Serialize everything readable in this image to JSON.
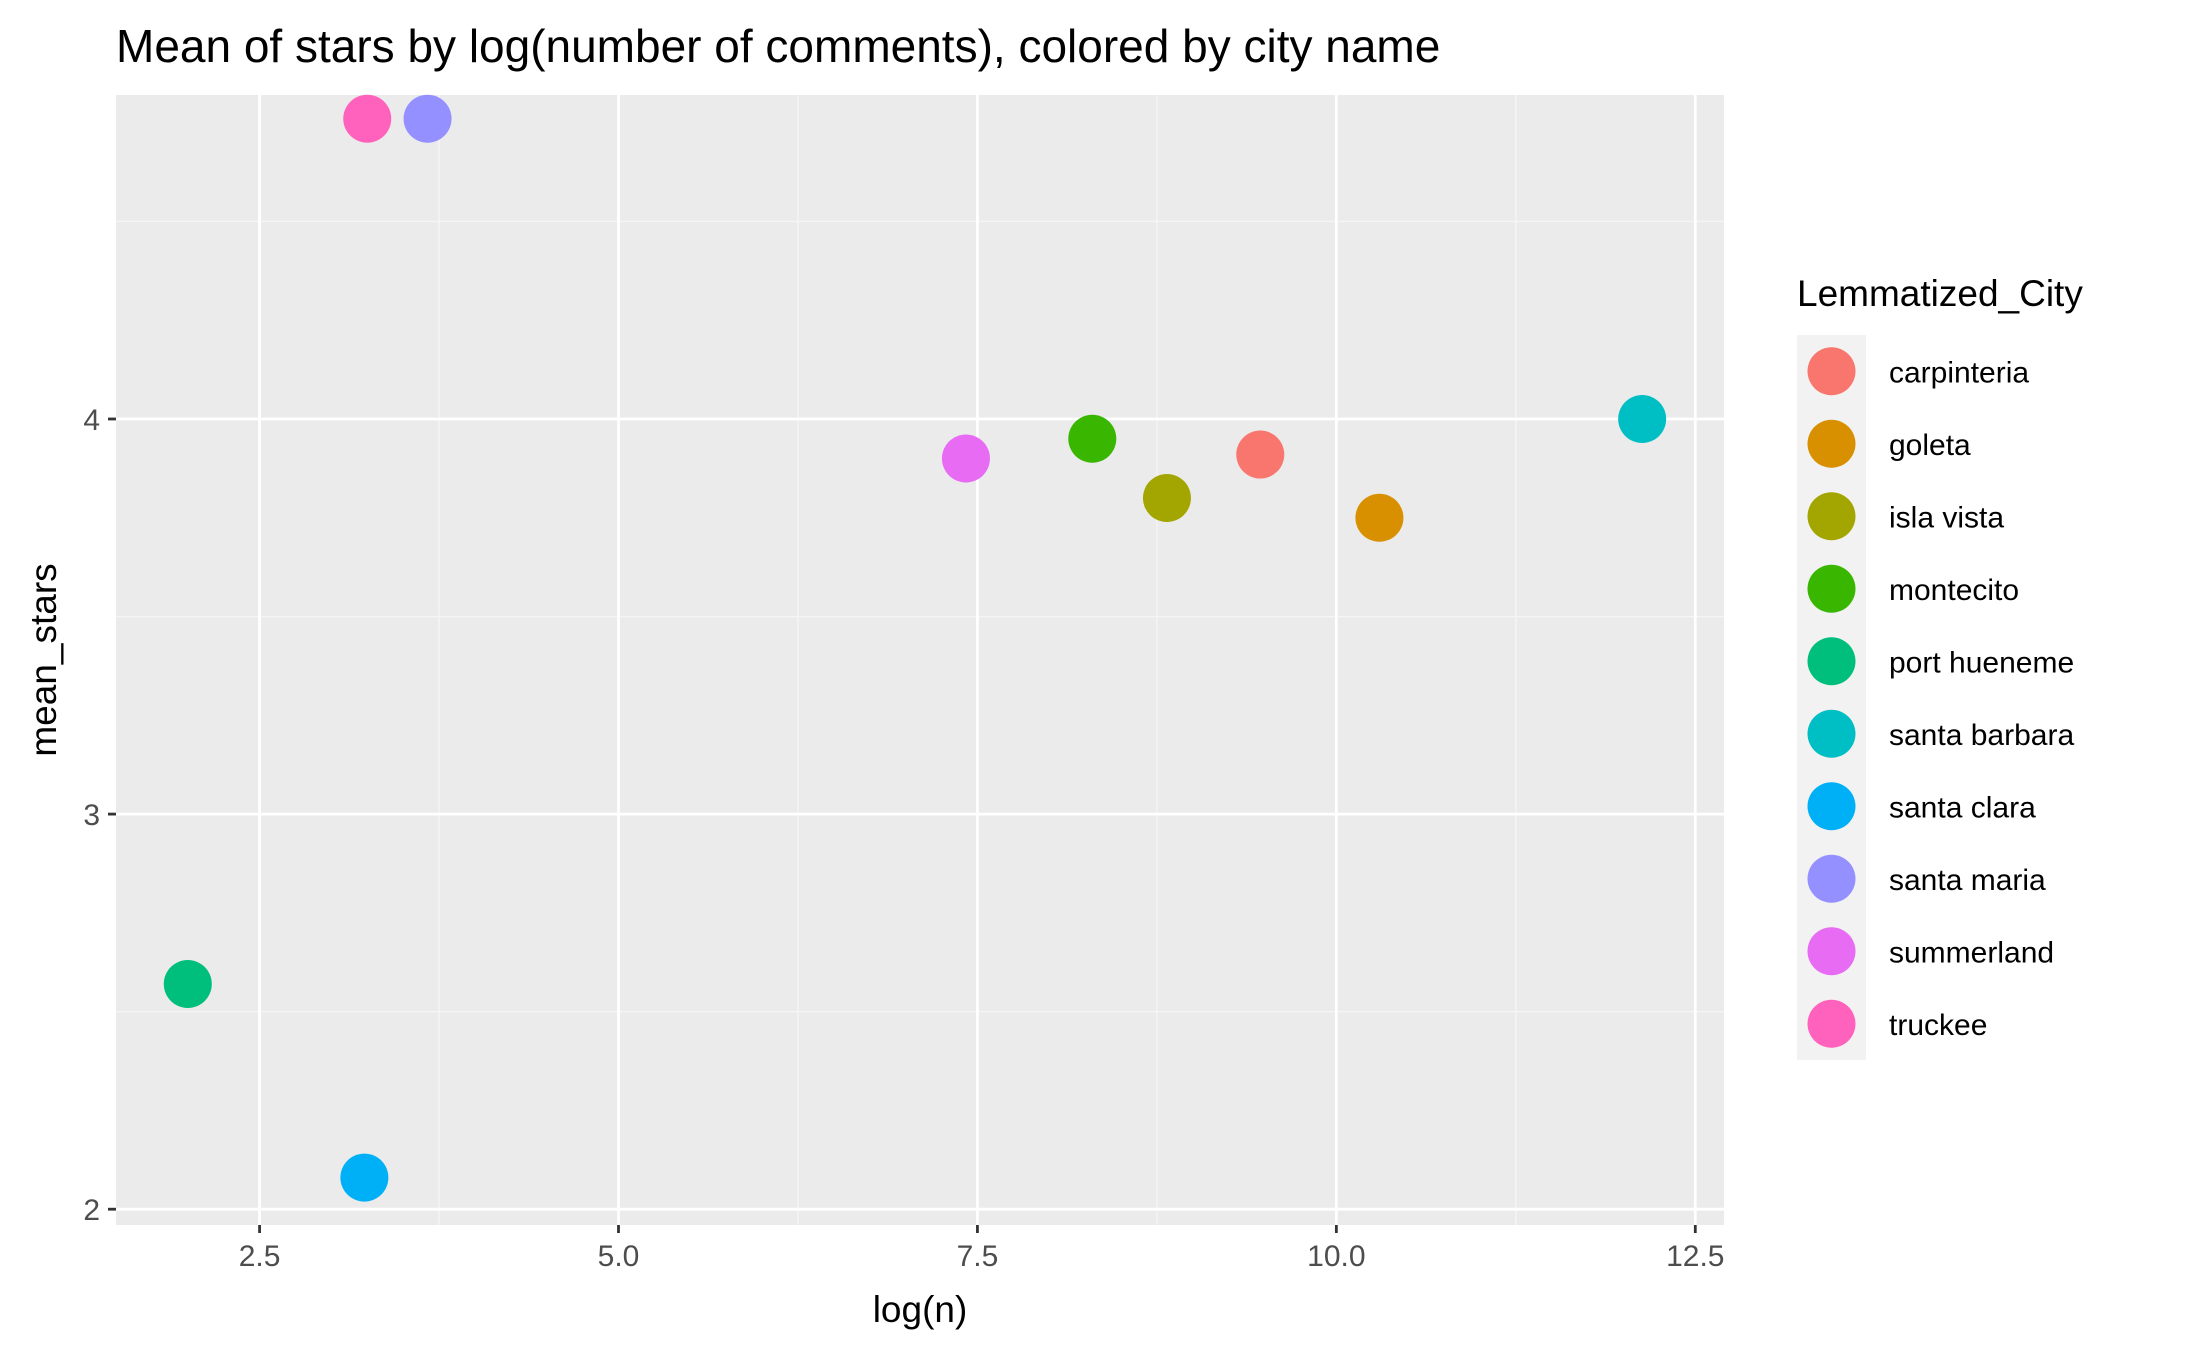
{
  "colors": {
    "panel_background": "#EBEBEB",
    "grid_major": "#FFFFFF",
    "grid_minor": "#F5F5F5",
    "legend_key_background": "#F2F2F2"
  },
  "chart_data": {
    "type": "scatter",
    "title": "Mean of stars by log(number of comments), colored by city name",
    "xlabel": "log(n)",
    "ylabel": "mean_stars",
    "xlim": [
      1.5,
      12.7
    ],
    "ylim": [
      1.96,
      4.82
    ],
    "x_ticks": [
      2.5,
      5.0,
      7.5,
      10.0,
      12.5
    ],
    "x_tick_labels": [
      "2.5",
      "5.0",
      "7.5",
      "10.0",
      "12.5"
    ],
    "y_ticks": [
      2,
      3,
      4
    ],
    "y_tick_labels": [
      "2",
      "3",
      "4"
    ],
    "grid": true,
    "legend": {
      "title": "Lemmatized_City",
      "position": "right"
    },
    "series": [
      {
        "name": "carpinteria",
        "color": "#F8766D",
        "x": [
          9.47
        ],
        "y": [
          3.91
        ]
      },
      {
        "name": "goleta",
        "color": "#D89000",
        "x": [
          10.3
        ],
        "y": [
          3.75
        ]
      },
      {
        "name": "isla vista",
        "color": "#A3A500",
        "x": [
          8.82
        ],
        "y": [
          3.8
        ]
      },
      {
        "name": "montecito",
        "color": "#39B600",
        "x": [
          8.3
        ],
        "y": [
          3.95
        ]
      },
      {
        "name": "port hueneme",
        "color": "#00BF7D",
        "x": [
          2.0
        ],
        "y": [
          2.57
        ]
      },
      {
        "name": "santa barbara",
        "color": "#00BFC4",
        "x": [
          12.13
        ],
        "y": [
          4.0
        ]
      },
      {
        "name": "santa clara",
        "color": "#00B0F6",
        "x": [
          3.23
        ],
        "y": [
          2.08
        ]
      },
      {
        "name": "santa maria",
        "color": "#9590FF",
        "x": [
          3.67
        ],
        "y": [
          4.76
        ]
      },
      {
        "name": "summerland",
        "color": "#E76BF3",
        "x": [
          7.42
        ],
        "y": [
          3.9
        ]
      },
      {
        "name": "truckee",
        "color": "#FF62BC",
        "x": [
          3.25
        ],
        "y": [
          4.76
        ]
      }
    ]
  }
}
